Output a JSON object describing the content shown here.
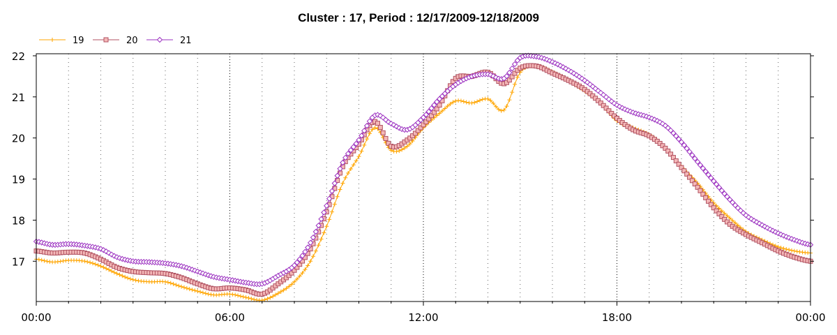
{
  "chart_data": {
    "type": "line",
    "title": "Cluster : 17, Period : 12/17/2009-12/18/2009",
    "xlabel": "",
    "ylabel": "",
    "x_ticks": [
      "00:00",
      "06:00",
      "12:00",
      "18:00",
      "00:00"
    ],
    "x_tick_hours": [
      0,
      6,
      12,
      18,
      24
    ],
    "xlim": [
      0,
      24
    ],
    "y_ticks": [
      17,
      18,
      19,
      20,
      21,
      22
    ],
    "ylim": [
      16.02,
      22.05
    ],
    "grid": "dotted vertical every hour",
    "legend": "top-left",
    "series": [
      {
        "name": "19",
        "color": "#ffa500",
        "marker": "plus",
        "points": [
          [
            0,
            17.05
          ],
          [
            0.5,
            16.98
          ],
          [
            1,
            17.02
          ],
          [
            1.5,
            17.0
          ],
          [
            2,
            16.88
          ],
          [
            2.5,
            16.7
          ],
          [
            3,
            16.55
          ],
          [
            3.5,
            16.5
          ],
          [
            4,
            16.5
          ],
          [
            4.5,
            16.38
          ],
          [
            5,
            16.27
          ],
          [
            5.5,
            16.18
          ],
          [
            6,
            16.2
          ],
          [
            6.5,
            16.12
          ],
          [
            7,
            16.05
          ],
          [
            7.5,
            16.22
          ],
          [
            8,
            16.5
          ],
          [
            8.5,
            17.0
          ],
          [
            9,
            17.85
          ],
          [
            9.5,
            18.9
          ],
          [
            10,
            19.55
          ],
          [
            10.5,
            20.25
          ],
          [
            11,
            19.7
          ],
          [
            11.5,
            19.8
          ],
          [
            12,
            20.25
          ],
          [
            12.5,
            20.6
          ],
          [
            13,
            20.9
          ],
          [
            13.5,
            20.85
          ],
          [
            14,
            20.95
          ],
          [
            14.5,
            20.68
          ],
          [
            15,
            21.6
          ],
          [
            15.5,
            21.75
          ],
          [
            16,
            21.6
          ],
          [
            16.5,
            21.4
          ],
          [
            17,
            21.15
          ],
          [
            17.5,
            20.85
          ],
          [
            18,
            20.42
          ],
          [
            18.5,
            20.25
          ],
          [
            19,
            20.08
          ],
          [
            19.5,
            19.75
          ],
          [
            20,
            19.3
          ],
          [
            20.5,
            18.9
          ],
          [
            21,
            18.42
          ],
          [
            21.5,
            18.05
          ],
          [
            22,
            17.72
          ],
          [
            22.5,
            17.52
          ],
          [
            23,
            17.35
          ],
          [
            23.5,
            17.25
          ],
          [
            24,
            17.2
          ]
        ]
      },
      {
        "name": "20",
        "color": "#b05060",
        "marker": "square",
        "points": [
          [
            0,
            17.25
          ],
          [
            0.5,
            17.2
          ],
          [
            1,
            17.22
          ],
          [
            1.5,
            17.2
          ],
          [
            2,
            17.05
          ],
          [
            2.5,
            16.85
          ],
          [
            3,
            16.75
          ],
          [
            3.5,
            16.72
          ],
          [
            4,
            16.7
          ],
          [
            4.5,
            16.6
          ],
          [
            5,
            16.45
          ],
          [
            5.5,
            16.33
          ],
          [
            6,
            16.35
          ],
          [
            6.5,
            16.3
          ],
          [
            7,
            16.2
          ],
          [
            7.5,
            16.45
          ],
          [
            8,
            16.78
          ],
          [
            8.5,
            17.3
          ],
          [
            9,
            18.2
          ],
          [
            9.5,
            19.3
          ],
          [
            10,
            19.85
          ],
          [
            10.5,
            20.4
          ],
          [
            11,
            19.8
          ],
          [
            11.5,
            19.95
          ],
          [
            12,
            20.32
          ],
          [
            12.5,
            20.8
          ],
          [
            13,
            21.45
          ],
          [
            13.5,
            21.5
          ],
          [
            14,
            21.6
          ],
          [
            14.5,
            21.32
          ],
          [
            15,
            21.7
          ],
          [
            15.5,
            21.75
          ],
          [
            16,
            21.58
          ],
          [
            16.5,
            21.4
          ],
          [
            17,
            21.18
          ],
          [
            17.5,
            20.85
          ],
          [
            18,
            20.48
          ],
          [
            18.5,
            20.2
          ],
          [
            19,
            20.05
          ],
          [
            19.5,
            19.75
          ],
          [
            20,
            19.28
          ],
          [
            20.5,
            18.8
          ],
          [
            21,
            18.3
          ],
          [
            21.5,
            17.9
          ],
          [
            22,
            17.65
          ],
          [
            22.5,
            17.45
          ],
          [
            23,
            17.25
          ],
          [
            23.5,
            17.1
          ],
          [
            24,
            17.0
          ]
        ]
      },
      {
        "name": "21",
        "color": "#9b30c0",
        "marker": "diamond",
        "points": [
          [
            0,
            17.48
          ],
          [
            0.5,
            17.4
          ],
          [
            1,
            17.42
          ],
          [
            1.5,
            17.38
          ],
          [
            2,
            17.3
          ],
          [
            2.5,
            17.1
          ],
          [
            3,
            17.0
          ],
          [
            3.5,
            16.98
          ],
          [
            4,
            16.95
          ],
          [
            4.5,
            16.88
          ],
          [
            5,
            16.75
          ],
          [
            5.5,
            16.62
          ],
          [
            6,
            16.55
          ],
          [
            6.5,
            16.48
          ],
          [
            7,
            16.45
          ],
          [
            7.5,
            16.65
          ],
          [
            8,
            16.9
          ],
          [
            8.5,
            17.45
          ],
          [
            9,
            18.35
          ],
          [
            9.5,
            19.4
          ],
          [
            10,
            19.95
          ],
          [
            10.5,
            20.55
          ],
          [
            11,
            20.35
          ],
          [
            11.5,
            20.2
          ],
          [
            12,
            20.5
          ],
          [
            12.5,
            20.95
          ],
          [
            13,
            21.3
          ],
          [
            13.5,
            21.5
          ],
          [
            14,
            21.55
          ],
          [
            14.5,
            21.45
          ],
          [
            15,
            21.95
          ],
          [
            15.5,
            21.98
          ],
          [
            16,
            21.85
          ],
          [
            16.5,
            21.65
          ],
          [
            17,
            21.4
          ],
          [
            17.5,
            21.1
          ],
          [
            18,
            20.8
          ],
          [
            18.5,
            20.62
          ],
          [
            19,
            20.5
          ],
          [
            19.5,
            20.3
          ],
          [
            20,
            19.9
          ],
          [
            20.5,
            19.42
          ],
          [
            21,
            18.95
          ],
          [
            21.5,
            18.5
          ],
          [
            22,
            18.12
          ],
          [
            22.5,
            17.88
          ],
          [
            23,
            17.68
          ],
          [
            23.5,
            17.52
          ],
          [
            24,
            17.4
          ]
        ]
      }
    ]
  }
}
